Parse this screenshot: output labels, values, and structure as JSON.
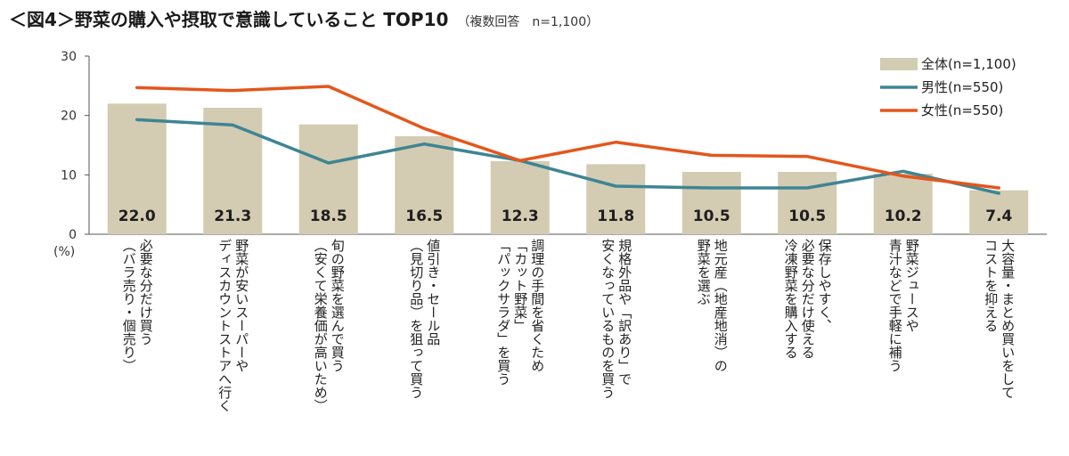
{
  "header": {
    "title": "＜図4＞野菜の購入や摂取で意識していること TOP10",
    "subtitle": "（複数回答　n=1,100）"
  },
  "chart_data": {
    "type": "bar",
    "title": "＜図4＞野菜の購入や摂取で意識していること TOP10",
    "subtitle": "（複数回答　n=1,100）",
    "ylabel": "(%)",
    "ylim": [
      0,
      30
    ],
    "yticks": [
      0,
      10,
      20,
      30
    ],
    "grid": false,
    "legend_position": "top-right",
    "categories": [
      [
        "必要な分だけ買う",
        "（バラ売り・個売り）"
      ],
      [
        "野菜が安いスーパーや",
        "ディスカウントストアへ行く"
      ],
      [
        "旬の野菜を選んで買う",
        "（安くて栄養価が高いため）"
      ],
      [
        "値引き・セール品",
        "（見切り品）を狙って買う"
      ],
      [
        "調理の手間を省くため",
        "「カット野菜」",
        "「パックサラダ」を買う"
      ],
      [
        "規格外品や「訳あり」で",
        "安くなっているものを買う"
      ],
      [
        "地元産（地産地消）の",
        "野菜を選ぶ"
      ],
      [
        "保存しやすく、",
        "必要な分だけ使える",
        "冷凍野菜を購入する"
      ],
      [
        "野菜ジュースや",
        "青汁などで手軽に補う"
      ],
      [
        "大容量・まとめ買いをして",
        "コストを抑える"
      ]
    ],
    "series": [
      {
        "name": "全体(n=1,100)",
        "type": "bar",
        "color": "#d3ccb2",
        "values": [
          22.0,
          21.3,
          18.5,
          16.5,
          12.3,
          11.8,
          10.5,
          10.5,
          10.2,
          7.4
        ],
        "labels": [
          "22.0",
          "21.3",
          "18.5",
          "16.5",
          "12.3",
          "11.8",
          "10.5",
          "10.5",
          "10.2",
          "7.4"
        ]
      },
      {
        "name": "男性(n=550)",
        "type": "line",
        "color": "#3e8593",
        "values": [
          19.3,
          18.4,
          12.0,
          15.2,
          12.4,
          8.1,
          7.8,
          7.8,
          10.6,
          6.9
        ]
      },
      {
        "name": "女性(n=550)",
        "type": "line",
        "color": "#e4561b",
        "values": [
          24.7,
          24.2,
          24.9,
          17.8,
          12.4,
          15.5,
          13.3,
          13.1,
          9.8,
          7.8
        ]
      }
    ]
  }
}
